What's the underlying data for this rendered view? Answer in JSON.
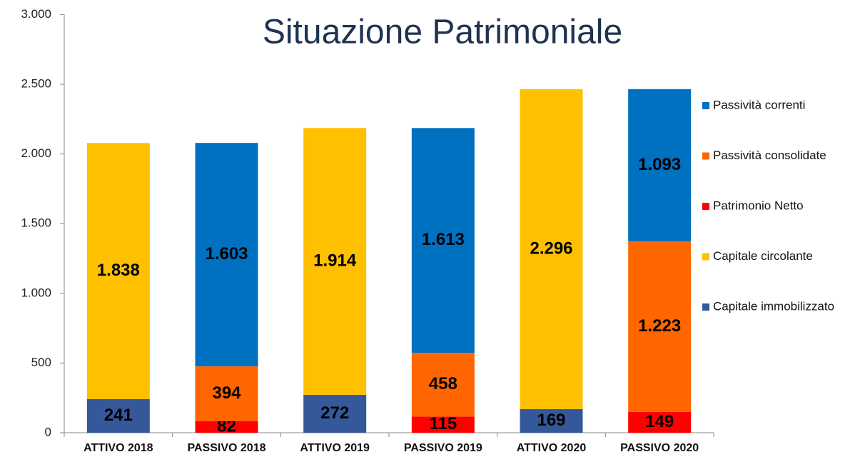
{
  "chart_data": {
    "type": "stacked_bar",
    "title": "Situazione Patrimoniale",
    "categories": [
      "ATTIVO 2018",
      "PASSIVO 2018",
      "ATTIVO 2019",
      "PASSIVO 2019",
      "ATTIVO 2020",
      "PASSIVO 2020"
    ],
    "series": [
      {
        "name": "Capitale immobilizzato",
        "color": "#35589a",
        "values": [
          241,
          null,
          272,
          null,
          169,
          null
        ],
        "value_labels": [
          "241",
          null,
          "272",
          null,
          "169",
          null
        ]
      },
      {
        "name": "Capitale circolante",
        "color": "#ffc000",
        "values": [
          1838,
          null,
          1914,
          null,
          2296,
          null
        ],
        "value_labels": [
          "1.838",
          null,
          "1.914",
          null,
          "2.296",
          null
        ]
      },
      {
        "name": "Patrimonio Netto",
        "color": "#ff0000",
        "values": [
          null,
          82,
          null,
          115,
          null,
          149
        ],
        "value_labels": [
          null,
          "82",
          null,
          "115",
          null,
          "149"
        ]
      },
      {
        "name": "Passività consolidate",
        "color": "#ff6600",
        "values": [
          null,
          394,
          null,
          458,
          null,
          1223
        ],
        "value_labels": [
          null,
          "394",
          null,
          "458",
          null,
          "1.223"
        ]
      },
      {
        "name": "Passività correnti",
        "color": "#0070c0",
        "values": [
          null,
          1603,
          null,
          1613,
          null,
          1093
        ],
        "value_labels": [
          null,
          "1.603",
          null,
          "1.613",
          null,
          "1.093"
        ]
      }
    ],
    "ylim": [
      0,
      3000
    ],
    "yticks": [
      0,
      500,
      {
        "value": 1000,
        "label": "1.000"
      },
      {
        "value": 1500,
        "label": "1.500"
      },
      {
        "value": 2000,
        "label": "2.000"
      },
      {
        "value": 2500,
        "label": "2.500"
      },
      {
        "value": 3000,
        "label": "3.000"
      }
    ],
    "legend": "right"
  }
}
